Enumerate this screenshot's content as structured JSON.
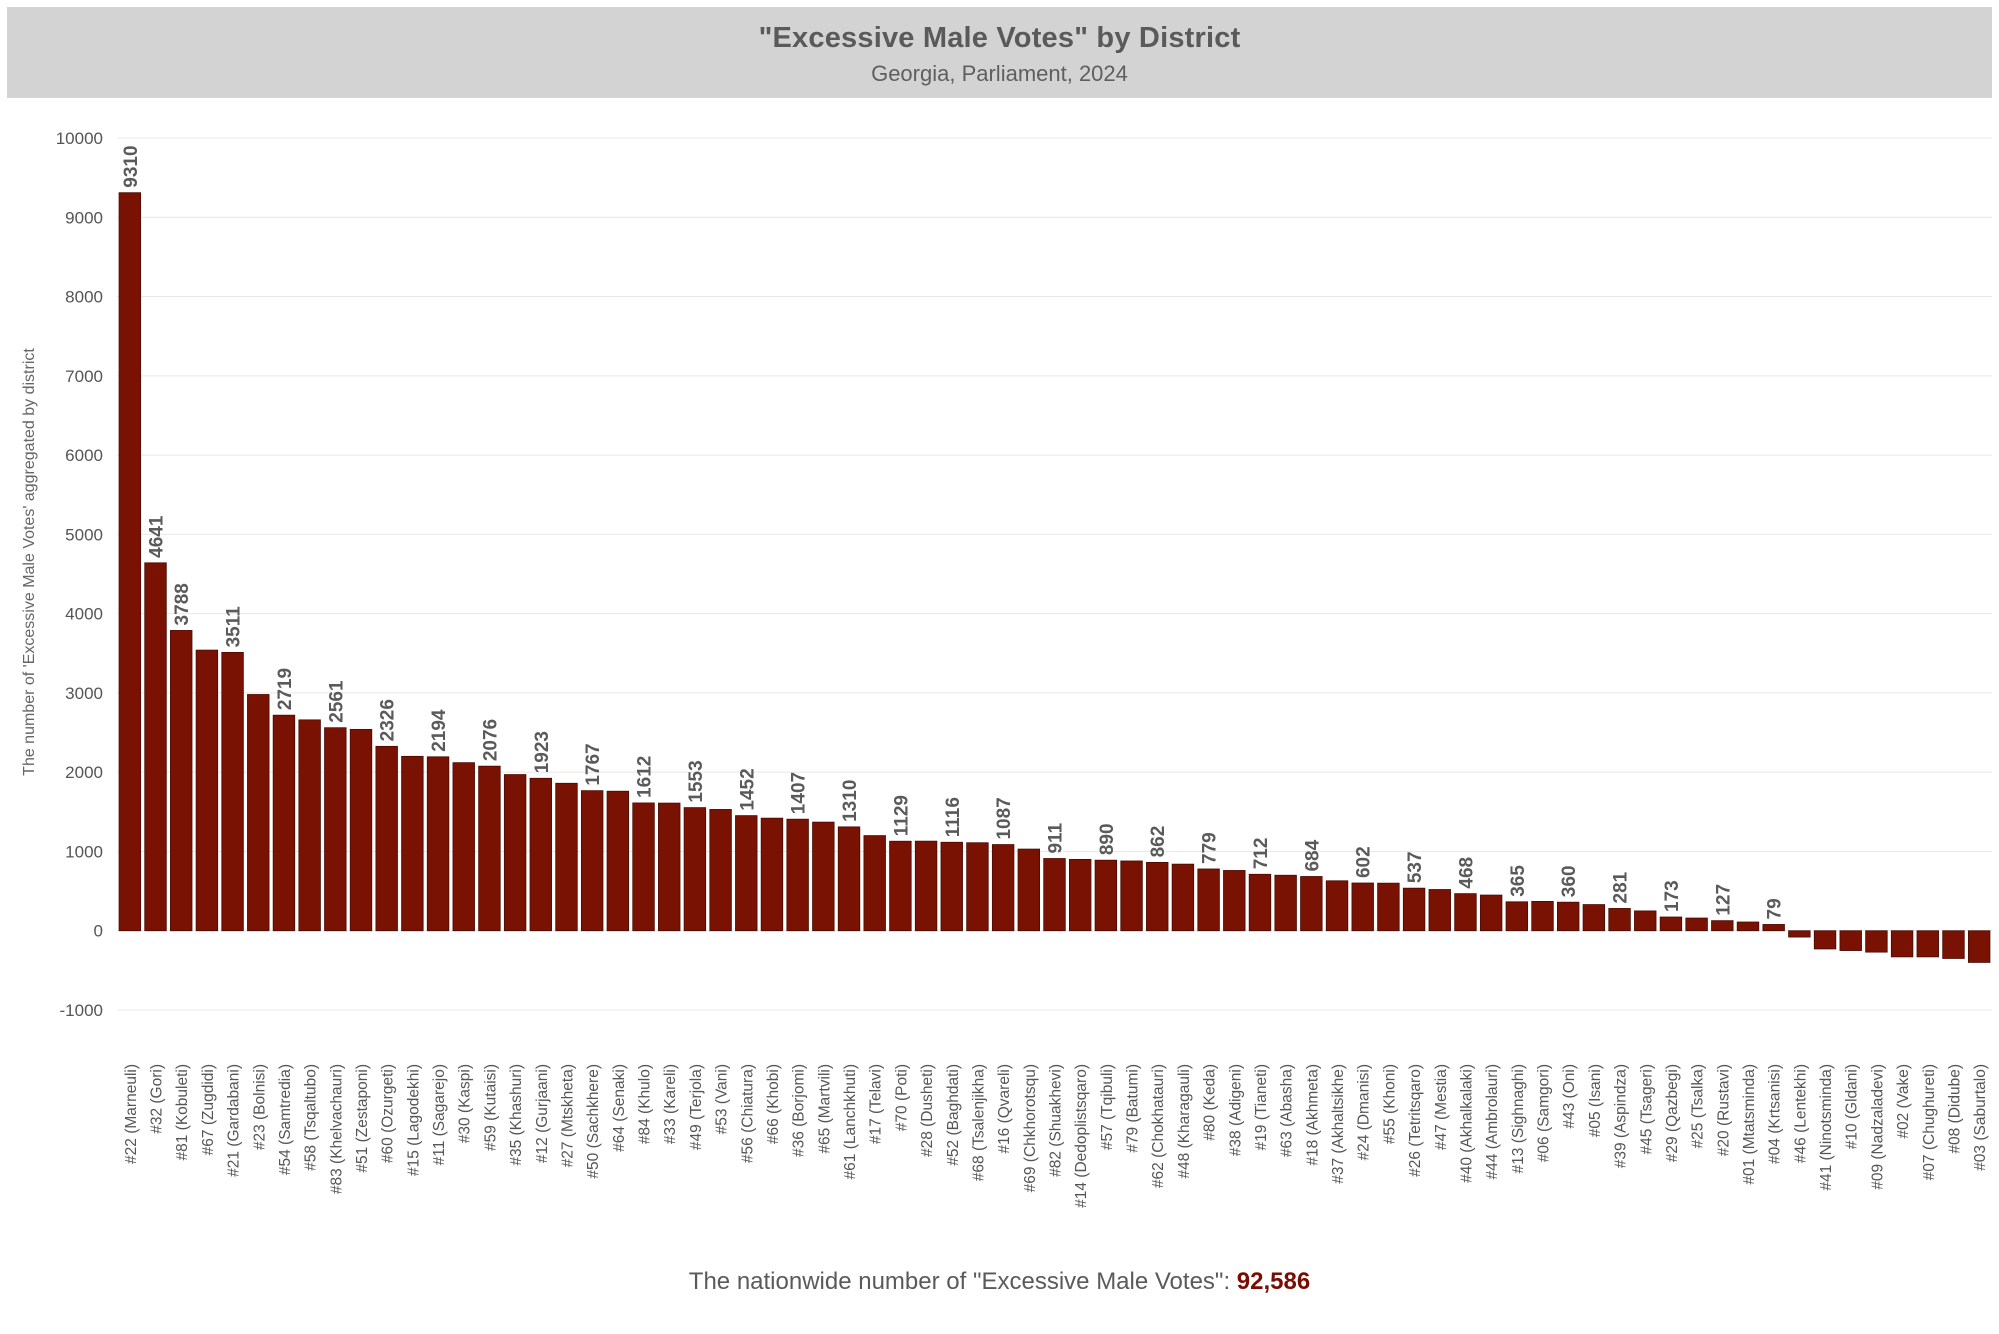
{
  "header": {
    "title": "\"Excessive Male Votes\" by District",
    "subtitle": "Georgia, Parliament, 2024"
  },
  "footer": {
    "prefix": "The nationwide number of \"Excessive Male Votes\":",
    "total": "92,586",
    "total_color": "#7a0c02"
  },
  "colors": {
    "bar": "#7a1204",
    "bar_stroke": "#4a0a02",
    "grid": "#e8e8e8",
    "label": "#5a5a5a"
  },
  "chart_data": {
    "type": "bar",
    "title": "\"Excessive Male Votes\" by District",
    "subtitle": "Georgia, Parliament, 2024",
    "ylabel": "The number of 'Excessive Male Votes' aggregated by district",
    "xlabel": "",
    "ylim": [
      -1000,
      10000
    ],
    "yticks": [
      -1000,
      0,
      1000,
      2000,
      3000,
      4000,
      5000,
      6000,
      7000,
      8000,
      9000,
      10000
    ],
    "grid": true,
    "categories": [
      "#22 (Marneuli)",
      "#32 (Gori)",
      "#81 (Kobuleti)",
      "#67 (Zugdidi)",
      "#21 (Gardabani)",
      "#23 (Bolnisi)",
      "#54 (Samtredia)",
      "#58 (Tsqaltubo)",
      "#83 (Khelvachauri)",
      "#51 (Zestaponi)",
      "#60 (Ozurgeti)",
      "#15 (Lagodekhi)",
      "#11 (Sagarejo)",
      "#30 (Kaspi)",
      "#59 (Kutaisi)",
      "#35 (Khashuri)",
      "#12 (Gurjaani)",
      "#27 (Mtskheta)",
      "#50 (Sachkhere)",
      "#64 (Senaki)",
      "#84 (Khulo)",
      "#33 (Kareli)",
      "#49 (Terjola)",
      "#53 (Vani)",
      "#56 (Chiatura)",
      "#66 (Khobi)",
      "#36 (Borjomi)",
      "#65 (Martvili)",
      "#61 (Lanchkhuti)",
      "#17 (Telavi)",
      "#70 (Poti)",
      "#28 (Dusheti)",
      "#52 (Baghdati)",
      "#68 (Tsalenjikha)",
      "#16 (Qvareli)",
      "#69 (Chkhorotsqu)",
      "#82 (Shuakhevi)",
      "#14 (Dedoplistsqaro)",
      "#57 (Tqibuli)",
      "#79 (Batumi)",
      "#62 (Chokhatauri)",
      "#48 (Kharagauli)",
      "#80 (Keda)",
      "#38 (Adigeni)",
      "#19 (Tianeti)",
      "#63 (Abasha)",
      "#18 (Akhmeta)",
      "#37 (Akhaltsikhe)",
      "#24 (Dmanisi)",
      "#55 (Khoni)",
      "#26 (Tetritsqaro)",
      "#47 (Mestia)",
      "#40 (Akhalkalaki)",
      "#44 (Ambrolauri)",
      "#13 (Sighnaghi)",
      "#06 (Samgori)",
      "#43 (Oni)",
      "#05 (Isani)",
      "#39 (Aspindza)",
      "#45 (Tsageri)",
      "#29 (Qazbegi)",
      "#25 (Tsalka)",
      "#20 (Rustavi)",
      "#01 (Mtatsminda)",
      "#04 (Krtsanisi)",
      "#46 (Lentekhi)",
      "#41 (Ninotsminda)",
      "#10 (Gldani)",
      "#09 (Nadzaladevi)",
      "#02 (Vake)",
      "#07 (Chughureti)",
      "#08 (Didube)",
      "#03 (Saburtalo)"
    ],
    "values": [
      9310,
      4641,
      3788,
      3540,
      3511,
      2980,
      2719,
      2660,
      2561,
      2540,
      2326,
      2200,
      2194,
      2120,
      2076,
      1970,
      1923,
      1860,
      1767,
      1760,
      1612,
      1610,
      1553,
      1530,
      1452,
      1420,
      1407,
      1370,
      1310,
      1200,
      1129,
      1130,
      1116,
      1110,
      1087,
      1030,
      911,
      900,
      890,
      880,
      862,
      840,
      779,
      760,
      712,
      700,
      684,
      630,
      602,
      600,
      537,
      520,
      468,
      450,
      365,
      370,
      360,
      330,
      281,
      250,
      173,
      160,
      127,
      110,
      79,
      -80,
      -230,
      -250,
      -270,
      -330,
      -330,
      -350,
      -400
    ],
    "data_labels": [
      {
        "index": 0,
        "text": "9310"
      },
      {
        "index": 1,
        "text": "4641"
      },
      {
        "index": 2,
        "text": "3788"
      },
      {
        "index": 4,
        "text": "3511"
      },
      {
        "index": 6,
        "text": "2719"
      },
      {
        "index": 8,
        "text": "2561"
      },
      {
        "index": 10,
        "text": "2326"
      },
      {
        "index": 12,
        "text": "2194"
      },
      {
        "index": 14,
        "text": "2076"
      },
      {
        "index": 16,
        "text": "1923"
      },
      {
        "index": 18,
        "text": "1767"
      },
      {
        "index": 20,
        "text": "1612"
      },
      {
        "index": 22,
        "text": "1553"
      },
      {
        "index": 24,
        "text": "1452"
      },
      {
        "index": 26,
        "text": "1407"
      },
      {
        "index": 28,
        "text": "1310"
      },
      {
        "index": 30,
        "text": "1129"
      },
      {
        "index": 32,
        "text": "1116"
      },
      {
        "index": 34,
        "text": "1087"
      },
      {
        "index": 36,
        "text": "911"
      },
      {
        "index": 38,
        "text": "890"
      },
      {
        "index": 40,
        "text": "862"
      },
      {
        "index": 42,
        "text": "779"
      },
      {
        "index": 44,
        "text": "712"
      },
      {
        "index": 46,
        "text": "684"
      },
      {
        "index": 48,
        "text": "602"
      },
      {
        "index": 50,
        "text": "537"
      },
      {
        "index": 52,
        "text": "468"
      },
      {
        "index": 54,
        "text": "365"
      },
      {
        "index": 56,
        "text": "360"
      },
      {
        "index": 58,
        "text": "281"
      },
      {
        "index": 60,
        "text": "173"
      },
      {
        "index": 62,
        "text": "127"
      },
      {
        "index": 64,
        "text": "79"
      }
    ]
  }
}
